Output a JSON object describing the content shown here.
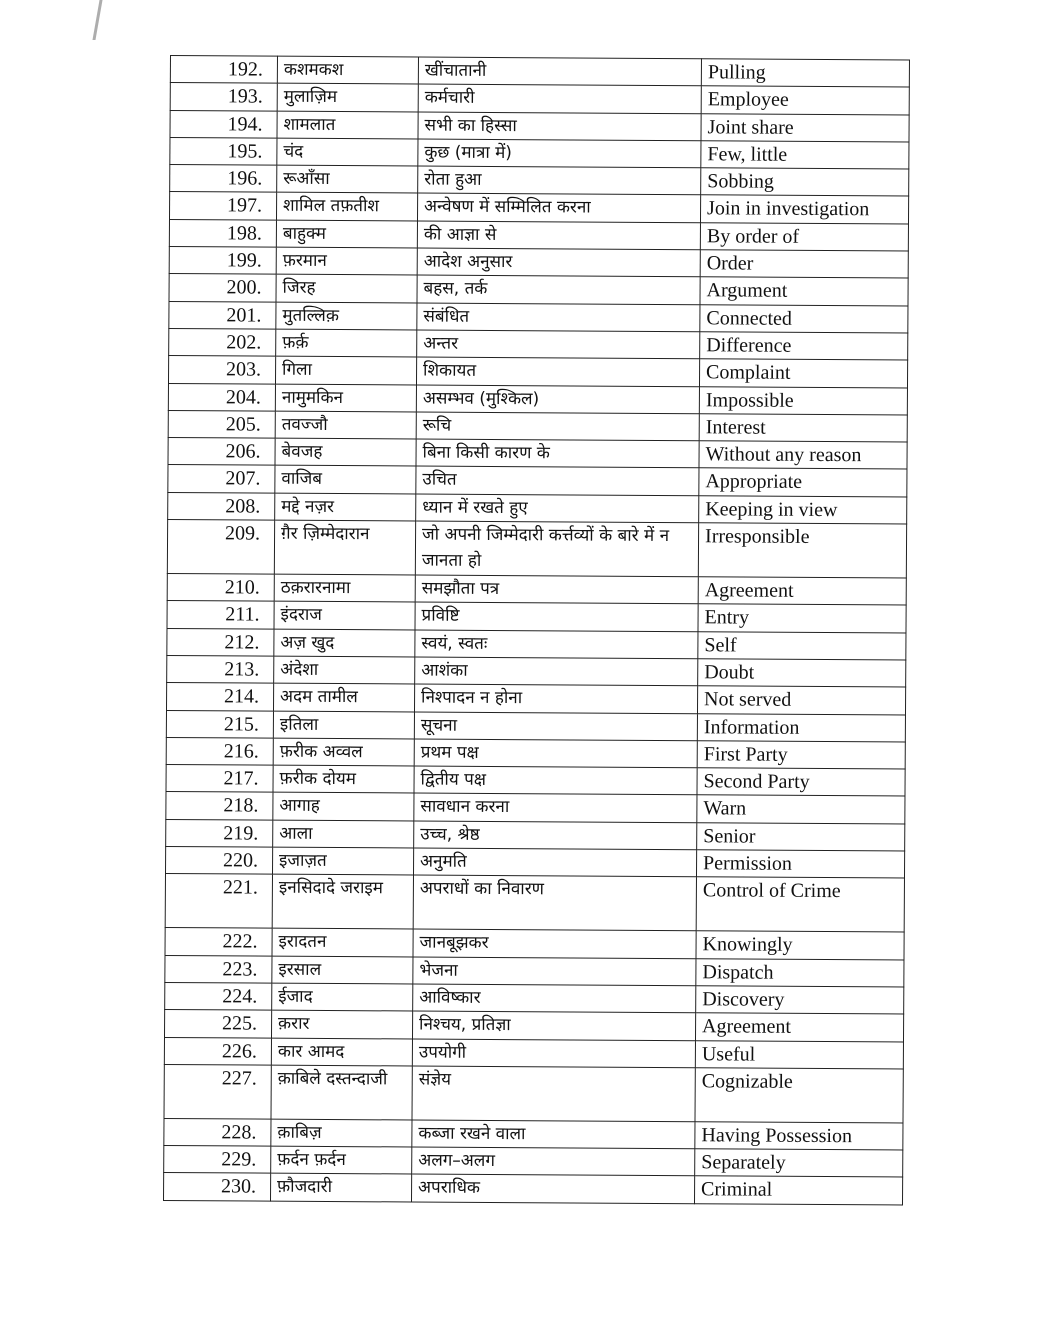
{
  "rows": [
    {
      "num": "192.",
      "word": "कशमकश",
      "meaning": "खींचातानी",
      "english": "Pulling"
    },
    {
      "num": "193.",
      "word": "मुलाज़िम",
      "meaning": "कर्मचारी",
      "english": "Employee"
    },
    {
      "num": "194.",
      "word": "शामलात",
      "meaning": "सभी का हिस्सा",
      "english": "Joint share"
    },
    {
      "num": "195.",
      "word": "चंद",
      "meaning": "कुछ (मात्रा में)",
      "english": "Few, little"
    },
    {
      "num": "196.",
      "word": "रूआँसा",
      "meaning": "रोता हुआ",
      "english": "Sobbing"
    },
    {
      "num": "197.",
      "word": "शामिल तफ़तीश",
      "meaning": "अन्वेषण में सम्मिलित करना",
      "english": "Join in investigation"
    },
    {
      "num": "198.",
      "word": "बाहुक्म",
      "meaning": "की आज्ञा से",
      "english": "By order of"
    },
    {
      "num": "199.",
      "word": "फ़रमान",
      "meaning": "आदेश अनुसार",
      "english": "Order"
    },
    {
      "num": "200.",
      "word": "जिरह",
      "meaning": "बहस, तर्क",
      "english": "Argument"
    },
    {
      "num": "201.",
      "word": "मुतल्लिक़",
      "meaning": "संबंधित",
      "english": "Connected"
    },
    {
      "num": "202.",
      "word": "फ़र्क़",
      "meaning": "अन्तर",
      "english": "Difference"
    },
    {
      "num": "203.",
      "word": "गिला",
      "meaning": "शिकायत",
      "english": "Complaint"
    },
    {
      "num": "204.",
      "word": "नामुमकिन",
      "meaning": "असम्भव (मुश्किल)",
      "english": "Impossible"
    },
    {
      "num": "205.",
      "word": "तवज्जौ",
      "meaning": "रूचि",
      "english": "Interest"
    },
    {
      "num": "206.",
      "word": "बेवजह",
      "meaning": "बिना किसी कारण के",
      "english": "Without any reason"
    },
    {
      "num": "207.",
      "word": "वाजिब",
      "meaning": "उचित",
      "english": "Appropriate"
    },
    {
      "num": "208.",
      "word": "मद्दे नज़र",
      "meaning": "ध्यान में रखते हुए",
      "english": "Keeping in view"
    },
    {
      "num": "209.",
      "word": "ग़ैर ज़िम्मेदारान",
      "meaning": "जो अपनी जिम्मेदारी कर्त्तव्यों के बारे में न जानता हो",
      "english": "Irresponsible"
    },
    {
      "num": "210.",
      "word": "ठक़रारनामा",
      "meaning": "समझौता पत्र",
      "english": "Agreement"
    },
    {
      "num": "211.",
      "word": "इंदराज",
      "meaning": "प्रविष्टि",
      "english": "Entry"
    },
    {
      "num": "212.",
      "word": "अज़ खुद",
      "meaning": "स्वयं, स्वतः",
      "english": "Self"
    },
    {
      "num": "213.",
      "word": "अंदेशा",
      "meaning": "आशंका",
      "english": "Doubt"
    },
    {
      "num": "214.",
      "word": "अदम तामील",
      "meaning": "निश्पादन न होना",
      "english": "Not served"
    },
    {
      "num": "215.",
      "word": "इतिला",
      "meaning": "सूचना",
      "english": "Information"
    },
    {
      "num": "216.",
      "word": "फ़रीक अव्वल",
      "meaning": "प्रथम पक्ष",
      "english": "First Party"
    },
    {
      "num": "217.",
      "word": "फ़रीक दोयम",
      "meaning": "द्वितीय पक्ष",
      "english": "Second Party"
    },
    {
      "num": "218.",
      "word": "आगाह",
      "meaning": "सावधान करना",
      "english": "Warn"
    },
    {
      "num": "219.",
      "word": "आला",
      "meaning": "उच्च, श्रेष्ठ",
      "english": "Senior"
    },
    {
      "num": "220.",
      "word": "इजाज़त",
      "meaning": "अनुमति",
      "english": "Permission"
    },
    {
      "num": "221.",
      "word": "इनसिदादे जराइम",
      "meaning": "अपराधों का निवारण",
      "english": "Control of Crime"
    },
    {
      "num": "222.",
      "word": "इरादतन",
      "meaning": "जानबूझकर",
      "english": "Knowingly"
    },
    {
      "num": "223.",
      "word": "इरसाल",
      "meaning": "भेजना",
      "english": "Dispatch"
    },
    {
      "num": "224.",
      "word": "ईजाद",
      "meaning": "आविष्कार",
      "english": "Discovery"
    },
    {
      "num": "225.",
      "word": "क़रार",
      "meaning": "निश्चय, प्रतिज्ञा",
      "english": "Agreement"
    },
    {
      "num": "226.",
      "word": "कार आमद",
      "meaning": "उपयोगी",
      "english": "Useful"
    },
    {
      "num": "227.",
      "word": "क़ाबिले दस्तन्दाजी",
      "meaning": "संज्ञेय",
      "english": "Cognizable"
    },
    {
      "num": "228.",
      "word": "क़ाबिज़",
      "meaning": "कब्जा रखने वाला",
      "english": "Having Possession"
    },
    {
      "num": "229.",
      "word": "फ़र्दन फ़र्दन",
      "meaning": "अलग–अलग",
      "english": "Separately"
    },
    {
      "num": "230.",
      "word": "फ़ौजदारी",
      "meaning": "अपराधिक",
      "english": "Criminal"
    }
  ]
}
